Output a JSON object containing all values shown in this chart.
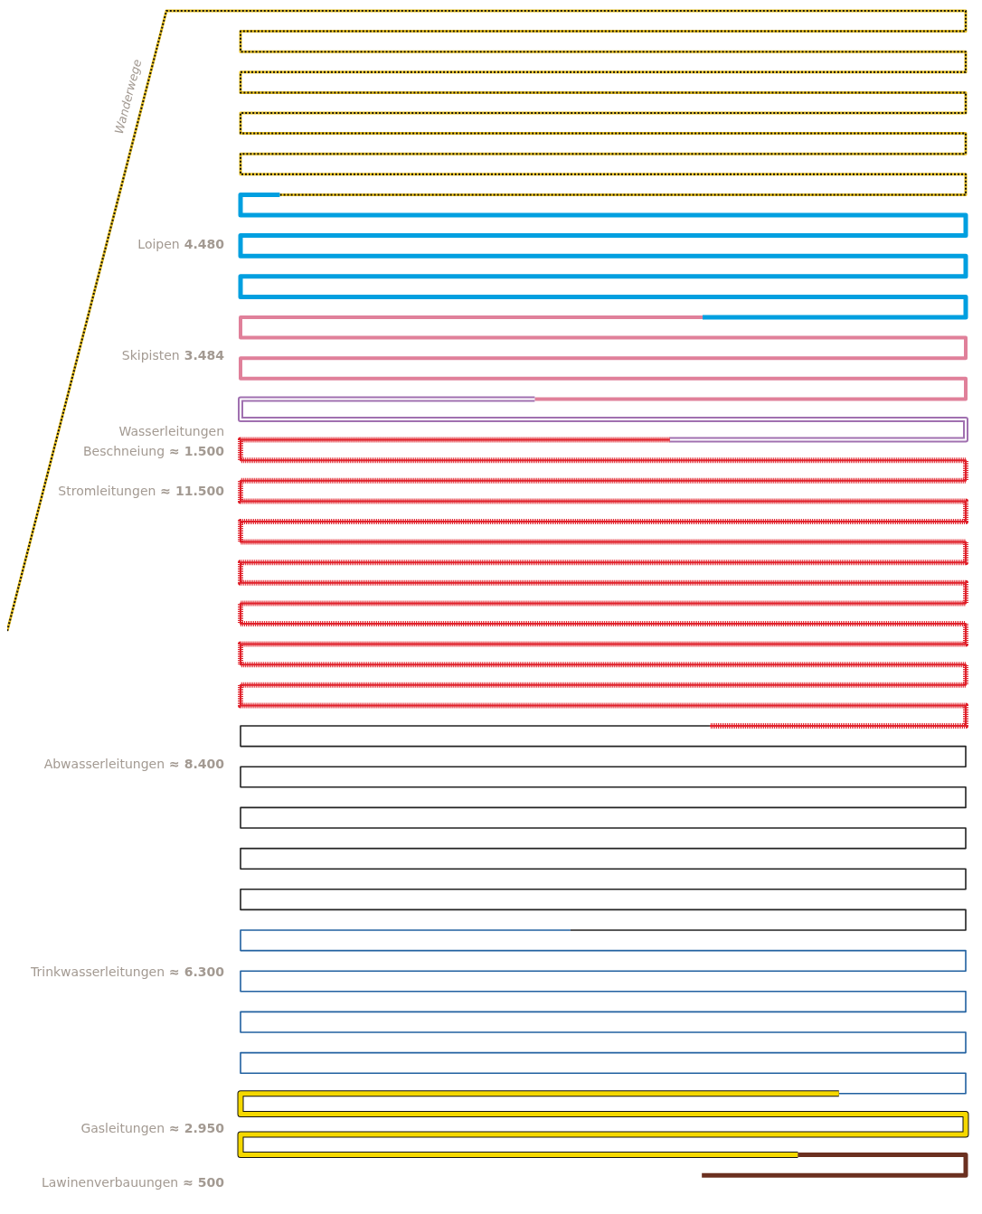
{
  "chart_data": {
    "type": "other",
    "categories": [
      "Wanderwege",
      "Loipen",
      "Skipisten",
      "Wasserleitungen\nBeschneiung",
      "Stromleitungen",
      "Abwasserleitungen",
      "Trinkwasserleitungen",
      "Gasleitungen",
      "Lawinenverbauungen"
    ],
    "values": [
      null,
      4480,
      3484,
      1500,
      11500,
      8400,
      6300,
      2950,
      500
    ],
    "value_labels": [
      null,
      "4.480",
      "3.484",
      "≈ 1.500",
      "≈ 11.500",
      "≈ 8.400",
      "≈ 6.300",
      "≈ 2.950",
      "≈ 500"
    ],
    "colors": [
      "#e8c020",
      "#009fe0",
      "#e0809a",
      "#a070b0",
      "#e0202a",
      "#222222",
      "#2060a0",
      "#f5d800",
      "#6b3020"
    ]
  }
}
